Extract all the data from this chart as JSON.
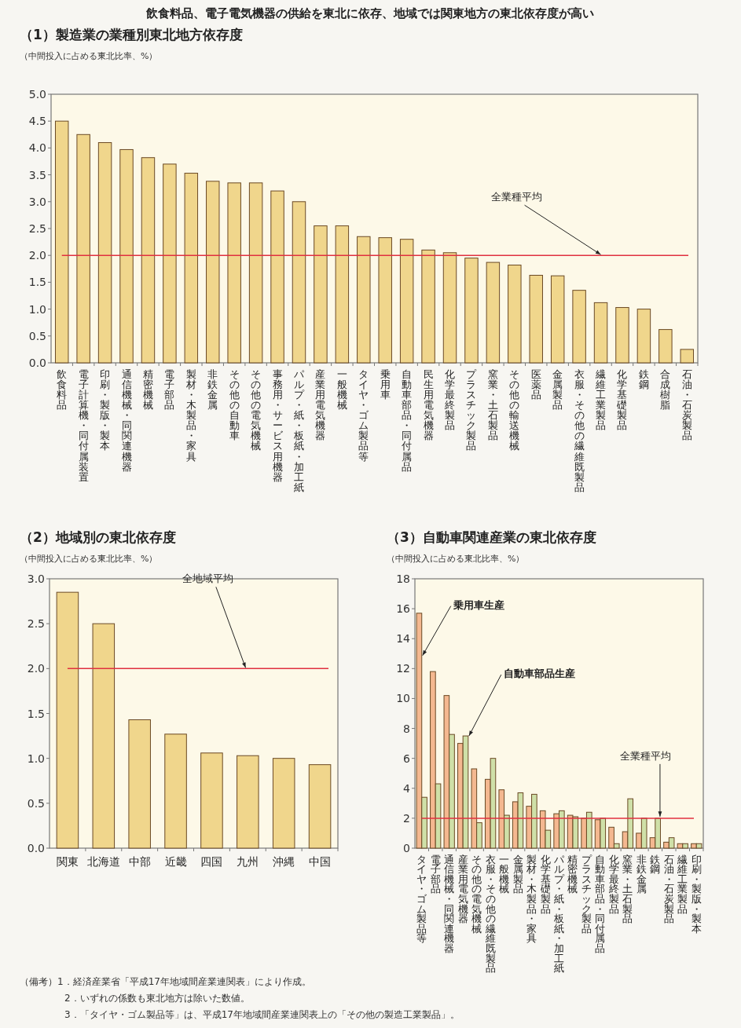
{
  "chart_data": [
    {
      "type": "bar",
      "title": "飲食料品、電子電気機器の供給を東北に依存、地域では関東地方の東北依存度が高い",
      "subtitle": "（1）製造業の業種別東北地方依存度",
      "ylabel": "（中間投入に占める東北比率、%）",
      "categories": [
        "飲食料品",
        "電子計算機・同付属装置",
        "印刷・製版・製本",
        "通信機械・同関連機器",
        "精密機械",
        "電子部品",
        "製材・木製品・家具",
        "非鉄金属",
        "その他の自動車",
        "その他の電気機械",
        "事務用・サービス用機器",
        "パルプ・紙・板紙・加工紙",
        "産業用電気機器",
        "一般機械",
        "タイヤ・ゴム製品等",
        "乗用車",
        "自動車部品・同付属品",
        "民生用電気機器",
        "化学最終製品",
        "プラスチック製品",
        "窯業・土石製品",
        "その他の輸送機械",
        "医薬品",
        "金属製品",
        "衣服・その他の繊維既製品",
        "繊維工業製品",
        "化学基礎製品",
        "鉄鋼",
        "合成樹脂",
        "石油・石炭製品"
      ],
      "values": [
        4.5,
        4.25,
        4.1,
        3.97,
        3.82,
        3.7,
        3.53,
        3.38,
        3.35,
        3.35,
        3.2,
        3.0,
        2.55,
        2.55,
        2.35,
        2.33,
        2.3,
        2.1,
        2.05,
        1.95,
        1.87,
        1.82,
        1.63,
        1.62,
        1.35,
        1.12,
        1.03,
        1.0,
        0.62,
        0.25
      ],
      "color": "#f0d68c",
      "ylim": [
        0,
        5
      ],
      "yticks": [
        {
          "value": 0,
          "label": "0.0"
        },
        {
          "value": 0.5,
          "label": "0.5"
        },
        {
          "value": 1,
          "label": "1.0"
        },
        {
          "value": 1.5,
          "label": "1.5"
        },
        {
          "value": 2,
          "label": "2.0"
        },
        {
          "value": 2.5,
          "label": "2.5"
        },
        {
          "value": 3,
          "label": "3.0"
        },
        {
          "value": 3.5,
          "label": "3.5"
        },
        {
          "value": 4,
          "label": "4.0"
        },
        {
          "value": 4.5,
          "label": "4.5"
        },
        {
          "value": 5,
          "label": "5.0"
        }
      ],
      "ref_lines": [
        {
          "axis": "y",
          "value": 2,
          "label": "全業種平均",
          "color": "#e03040"
        }
      ]
    },
    {
      "type": "bar",
      "title": "（2）地域別の東北依存度",
      "ylabel": "（中間投入に占める東北比率、%）",
      "categories": [
        "関東",
        "北海道",
        "中部",
        "近畿",
        "四国",
        "九州",
        "沖縄",
        "中国"
      ],
      "values": [
        2.85,
        2.5,
        1.43,
        1.27,
        1.06,
        1.03,
        1.0,
        0.93
      ],
      "color": "#f0d68c",
      "ylim": [
        0,
        3
      ],
      "yticks": [
        {
          "value": 0,
          "label": "0.0"
        },
        {
          "value": 0.5,
          "label": "0.5"
        },
        {
          "value": 1,
          "label": "1.0"
        },
        {
          "value": 1.5,
          "label": "1.5"
        },
        {
          "value": 2,
          "label": "2.0"
        },
        {
          "value": 2.5,
          "label": "2.5"
        },
        {
          "value": 3,
          "label": "3.0"
        }
      ],
      "ref_lines": [
        {
          "axis": "y",
          "value": 2,
          "label": "全地域平均",
          "color": "#e03040"
        }
      ]
    },
    {
      "type": "bar",
      "title": "（3）自動車関連産業の東北依存度",
      "ylabel": "（中間投入に占める東北比率、%）",
      "categories": [
        "タイヤ・ゴム製品等",
        "電子部品",
        "通信機械・同関連機器",
        "産業用電気機器",
        "その他の電気機械",
        "衣服・その他の繊維既製品",
        "一般機械",
        "金属製品",
        "製材・木製品・家具",
        "化学基礎製品",
        "パルプ・紙・板紙・加工紙",
        "精密機械",
        "プラスチック製品",
        "自動車部品・同付属品",
        "化学最終製品",
        "窯業・土石製品",
        "非鉄金属",
        "鉄鋼",
        "石油・石炭製品",
        "繊維工業製品",
        "印刷・製版・製本"
      ],
      "series": [
        {
          "name": "乗用車生産",
          "color": "#f4b890",
          "values": [
            15.7,
            11.8,
            10.2,
            7.0,
            5.3,
            4.6,
            3.9,
            3.1,
            2.8,
            2.5,
            2.3,
            2.2,
            2.0,
            1.9,
            1.4,
            1.1,
            1.0,
            0.7,
            0.4,
            0.3,
            0.3
          ]
        },
        {
          "name": "自動車部品生産",
          "color": "#cfe0a8",
          "values": [
            3.4,
            4.3,
            7.6,
            7.5,
            1.7,
            6.0,
            2.2,
            3.7,
            3.6,
            1.2,
            2.5,
            2.1,
            2.4,
            2.0,
            0.3,
            3.3,
            2.0,
            2.0,
            0.7,
            0.3,
            0.3
          ]
        }
      ],
      "ylim": [
        0,
        18
      ],
      "yticks": [
        0,
        2,
        4,
        6,
        8,
        10,
        12,
        14,
        16,
        18
      ],
      "ref_lines": [
        {
          "axis": "y",
          "value": 2,
          "label": "全業種平均",
          "color": "#e03040"
        }
      ],
      "annotations": [
        "（備考）1．経済産業省「平成17年地域間産業連関表」により作成。",
        "2．いずれの係数も東北地方は除いた数値。",
        "3．「タイヤ・ゴム製品等」は、平成17年地域間産業連関表上の「その他の製造工業製品」。"
      ]
    }
  ]
}
